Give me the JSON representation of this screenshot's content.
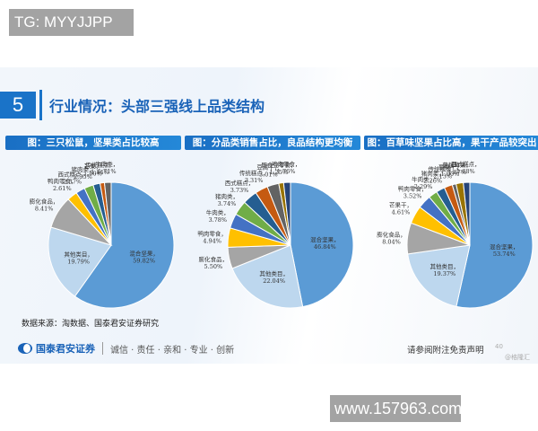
{
  "watermarks": {
    "top": "TG: MYYJJPP",
    "bottom": "www.157963.com"
  },
  "slide": {
    "section_number": "5",
    "title": "行业情况：头部三强线上品类结构",
    "source": "数据来源：淘数据、国泰君安证券研究",
    "footer": {
      "brand": "国泰君安证券",
      "motto": "诚信 · 责任 · 亲和 · 专业 · 创新",
      "disclaimer": "请参阅附注免责声明",
      "page": "40",
      "credit": "@格隆汇"
    }
  },
  "colors": {
    "primary": "#5b9bd5",
    "light": "#bdd7ee",
    "gray": "#a5a5a5",
    "yellow": "#ffc000",
    "blue": "#4472c4",
    "green": "#70ad47",
    "navy": "#255e91",
    "orange": "#c55a11",
    "darkgray": "#636363",
    "olive": "#997300",
    "deep": "#264478"
  },
  "chart_data": [
    {
      "type": "pie",
      "title": "图：三只松鼠，坚果类占比较高",
      "categories": [
        "混合坚果",
        "其他类目",
        "膨化食品",
        "鸭肉零食",
        "西式糕点",
        "猪肉类",
        "芒果",
        "传统糕点",
        "牛肉类"
      ],
      "labels": [
        "混合坚果，59.82%",
        "其他类目，19.79%",
        "膨化食品，8.41%",
        "鸭肉零食，2.61%",
        "西式糕点，2.37%",
        "猪肉类，2.35%",
        "芒果，1.80%",
        "传统糕点，1.14%",
        "牛肉类，1.71%"
      ],
      "values": [
        59.82,
        19.79,
        8.41,
        2.61,
        2.37,
        2.35,
        1.8,
        1.14,
        1.71
      ]
    },
    {
      "type": "pie",
      "title": "图：分品类销售占比，良品结构更均衡",
      "categories": [
        "混合坚果",
        "其他类目",
        "膨化食品",
        "鸭肉零食",
        "牛肉类",
        "猪肉类",
        "西式糕点",
        "传统糕点",
        "豆腐干",
        "即食豆零食",
        "鸡肉零食"
      ],
      "labels": [
        "混合坚果，46.84%",
        "其他类目，22.04%",
        "膨化食品，5.50%",
        "鸭肉零食，4.94%",
        "牛肉类，3.78%",
        "猪肉类，3.74%",
        "西式糕点，3.73%",
        "传统糕点，3.31%",
        "豆腐干，3.01%",
        "即食豆零食，1.25%",
        "鸡肉零食，1.76%"
      ],
      "values": [
        46.84,
        22.04,
        5.5,
        4.94,
        3.78,
        3.74,
        3.73,
        3.31,
        3.01,
        1.25,
        1.76
      ]
    },
    {
      "type": "pie",
      "title": "图：百草味坚果占比高，果干产品较突出",
      "categories": [
        "混合坚果",
        "其他类目",
        "膨化食品",
        "芒果干",
        "鸭肉零食",
        "牛肉类",
        "猪肉类",
        "传统糕点",
        "豆腐干",
        "蔓越莓果",
        "西式糕点"
      ],
      "labels": [
        "混合坚果，53.74%",
        "其他类目，19.37%",
        "膨化食品，8.04%",
        "芒果干，4.61%",
        "鸭肉零食，3.52%",
        "牛肉类，2.29%",
        "猪肉类，2.26%",
        "传统糕点，2.13%",
        "豆腐干，1.00%",
        "蔓越莓果，1.87%",
        "西式糕点，1.68%"
      ],
      "values": [
        53.74,
        19.37,
        8.04,
        4.61,
        3.52,
        2.29,
        2.26,
        2.13,
        1.0,
        1.87,
        1.68
      ]
    }
  ]
}
